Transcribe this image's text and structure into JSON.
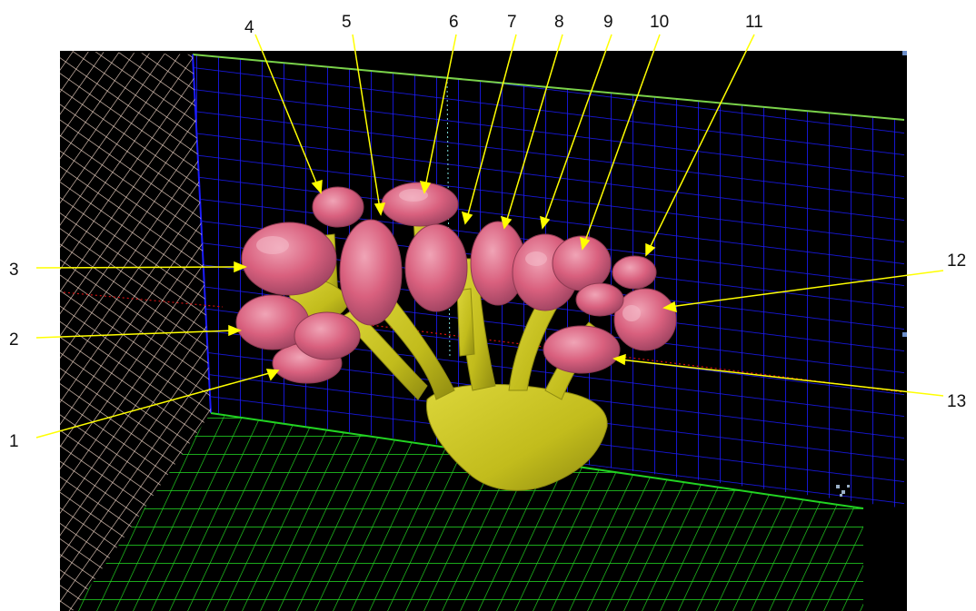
{
  "labels": [
    "1",
    "2",
    "3",
    "4",
    "5",
    "6",
    "7",
    "8",
    "9",
    "10",
    "11",
    "12",
    "13"
  ],
  "colors": {
    "background": "#000000",
    "back_grid": "#1212e6",
    "floor_grid": "#22d322",
    "left_grid": "#f2d6c6",
    "stem": "#c9c31f",
    "stem_dark": "#8e8a10",
    "lobe": "#d9607e",
    "lobe_light": "#ea9aae",
    "lobe_dark": "#8f3a52",
    "leader": "#ffff00",
    "guide": "#d01010"
  }
}
